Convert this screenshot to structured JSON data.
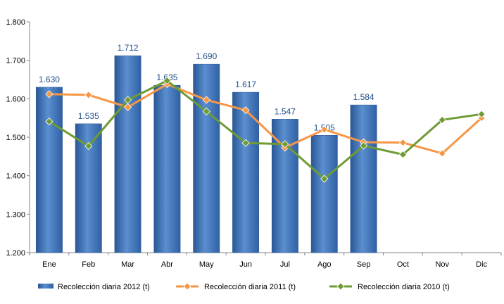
{
  "chart_data": {
    "type": "bar",
    "title": "",
    "xlabel": "",
    "ylabel": "",
    "categories": [
      "Ene",
      "Feb",
      "Mar",
      "Abr",
      "May",
      "Jun",
      "Jul",
      "Ago",
      "Sep",
      "Oct",
      "Nov",
      "Dic"
    ],
    "ylim": [
      1200,
      1800
    ],
    "yticks": [
      1200,
      1300,
      1400,
      1500,
      1600,
      1700,
      1800
    ],
    "ytick_labels": [
      "1.200",
      "1.300",
      "1.400",
      "1.500",
      "1.600",
      "1.700",
      "1.800"
    ],
    "grid": false,
    "legend_position": "bottom",
    "series": [
      {
        "name": "Recolección diaria  2012 (t)",
        "kind": "bar",
        "color": "#3f74b8",
        "values": [
          1630,
          1535,
          1712,
          1635,
          1690,
          1617,
          1547,
          1505,
          1584,
          null,
          null,
          null
        ],
        "data_labels": [
          "1.630",
          "1.535",
          "1.712",
          "1.635",
          "1.690",
          "1.617",
          "1.547",
          "1.505",
          "1.584",
          "",
          "",
          ""
        ]
      },
      {
        "name": "Recolección diaria  2011 (t)",
        "kind": "line",
        "color": "#f79646",
        "values": [
          1612,
          1610,
          1578,
          1638,
          1597,
          1570,
          1473,
          1520,
          1487,
          1486,
          1458,
          1550
        ]
      },
      {
        "name": "Recolección diaria  2010 (t)",
        "kind": "line",
        "color": "#6e9b34",
        "values": [
          1541,
          1477,
          1597,
          1647,
          1567,
          1485,
          1482,
          1392,
          1478,
          1455,
          1545,
          1560
        ]
      }
    ]
  }
}
